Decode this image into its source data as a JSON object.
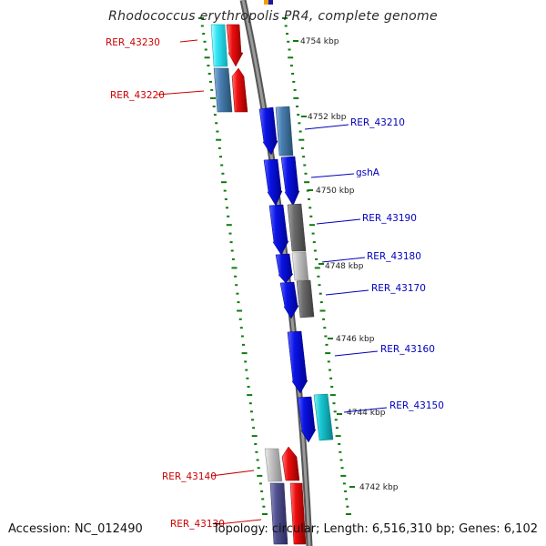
{
  "title": "Rhodococcus erythropolis PR4, complete genome",
  "accession": "Accession: NC_012490",
  "summary": "Topology: circular; Length: 6,516,310 bp; Genes: 6,102",
  "colors": {
    "ruler": "#777777",
    "ruler_edge": "#444444",
    "tick": "#0f7a0f",
    "label_forward": "#cc0000",
    "label_reverse": "#0000bb",
    "blue": "#0a14e6",
    "steel": "#4a7fb4",
    "grey": "#6c6c6c",
    "lightgrey": "#c4c4c4",
    "cyan": "#19c8d2",
    "red": "#ee0e0e",
    "lightcyan": "#32e6f5",
    "navy": "#51518f"
  },
  "diagram": {
    "kbp_labels": [
      "4754 kbp",
      "4752 kbp",
      "4750 kbp",
      "4748 kbp",
      "4746 kbp",
      "4744 kbp",
      "4742 kbp"
    ],
    "genes": [
      {
        "label": "RER_43230",
        "strand": "outer",
        "color": "lightcyan"
      },
      {
        "label": "RER_43220",
        "strand": "outer",
        "color": "steel"
      },
      {
        "label": "RER_43210",
        "strand": "inner",
        "color": "steel"
      },
      {
        "label": "gshA",
        "strand": "inner",
        "color": "blue"
      },
      {
        "label": "RER_43190",
        "strand": "inner",
        "color": "grey"
      },
      {
        "label": "RER_43180",
        "strand": "inner",
        "color": "lightgrey"
      },
      {
        "label": "RER_43170",
        "strand": "inner",
        "color": "grey"
      },
      {
        "label": "RER_43160",
        "strand": "inner",
        "color": "blue"
      },
      {
        "label": "RER_43150",
        "strand": "inner",
        "color": "cyan"
      },
      {
        "label": "RER_43140",
        "strand": "outer",
        "color": "lightgrey"
      },
      {
        "label": "RER_43130",
        "strand": "outer",
        "color": "navy"
      }
    ]
  }
}
